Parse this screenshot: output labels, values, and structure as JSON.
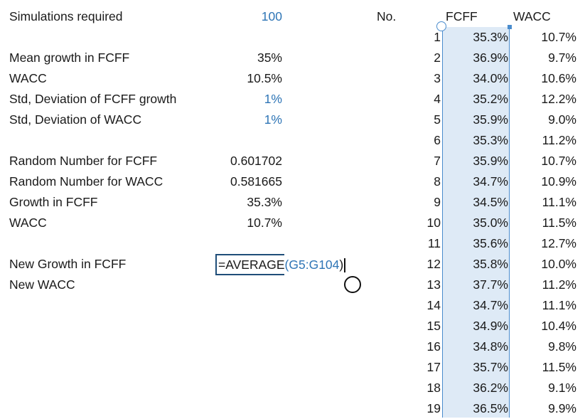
{
  "inputs": {
    "sim_label": "Simulations required",
    "sim_value": "100",
    "mean_growth_label": "Mean growth in FCFF",
    "mean_growth_value": "35%",
    "wacc_label": "WACC",
    "wacc_value": "10.5%",
    "std_fcff_label": "Std, Deviation of FCFF growth",
    "std_fcff_value": "1%",
    "std_wacc_label": "Std, Deviation of WACC",
    "std_wacc_value": "1%",
    "rand_fcff_label": "Random Number for FCFF",
    "rand_fcff_value": "0.601702",
    "rand_wacc_label": "Random Number for WACC",
    "rand_wacc_value": "0.581665",
    "growth_label": "Growth in FCFF",
    "growth_value": "35.3%",
    "wacc2_label": "WACC",
    "wacc2_value": "10.7%",
    "new_growth_label": "New Growth in FCFF",
    "new_wacc_label": "New WACC"
  },
  "formula": {
    "prefix": "=AVERAGE",
    "open": "(",
    "ref": "G5:G104",
    "close": ")"
  },
  "table": {
    "headers": [
      "No.",
      "FCFF",
      "WACC"
    ],
    "rows": [
      [
        "1",
        "35.3%",
        "10.7%"
      ],
      [
        "2",
        "36.9%",
        "9.7%"
      ],
      [
        "3",
        "34.0%",
        "10.6%"
      ],
      [
        "4",
        "35.2%",
        "12.2%"
      ],
      [
        "5",
        "35.9%",
        "9.0%"
      ],
      [
        "6",
        "35.3%",
        "11.2%"
      ],
      [
        "7",
        "35.9%",
        "10.7%"
      ],
      [
        "8",
        "34.7%",
        "10.9%"
      ],
      [
        "9",
        "34.5%",
        "11.1%"
      ],
      [
        "10",
        "35.0%",
        "11.5%"
      ],
      [
        "11",
        "35.6%",
        "12.7%"
      ],
      [
        "12",
        "35.8%",
        "10.0%"
      ],
      [
        "13",
        "37.7%",
        "11.2%"
      ],
      [
        "14",
        "34.7%",
        "11.1%"
      ],
      [
        "15",
        "34.9%",
        "10.4%"
      ],
      [
        "16",
        "34.8%",
        "9.8%"
      ],
      [
        "17",
        "35.7%",
        "11.5%"
      ],
      [
        "18",
        "36.2%",
        "9.1%"
      ],
      [
        "19",
        "36.5%",
        "9.9%"
      ]
    ]
  },
  "colors": {
    "input_blue": "#2e75b6",
    "selection_fill": "#deeaf6",
    "selection_border": "#4a8ccd",
    "edit_border": "#1f4e79"
  }
}
